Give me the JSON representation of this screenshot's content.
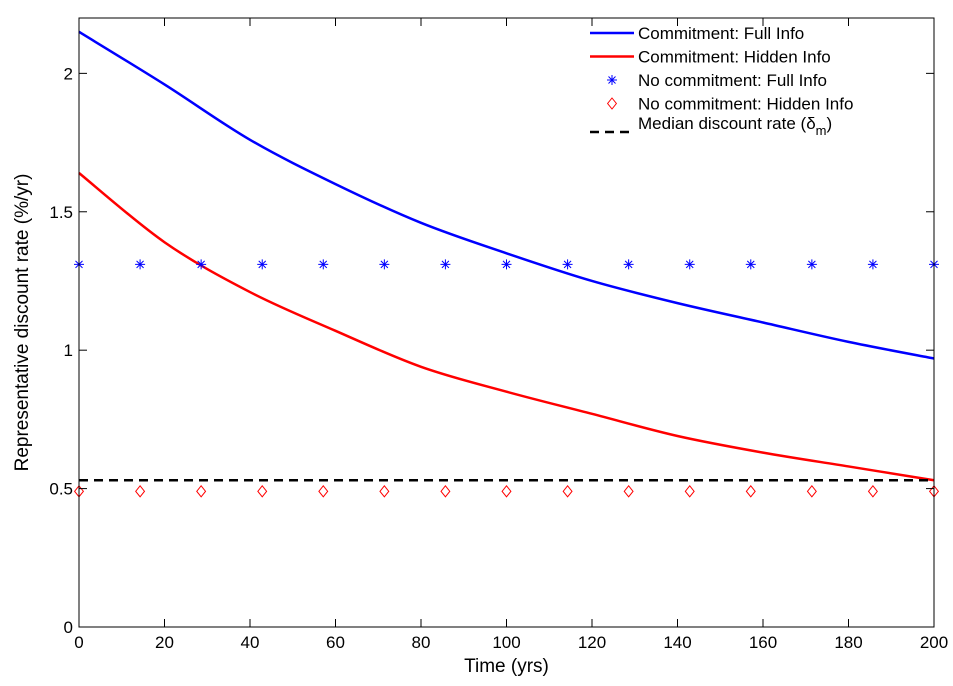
{
  "chart_data": {
    "type": "line",
    "title": "",
    "xlabel": "Time (yrs)",
    "ylabel": "Representative discount rate (%/yr)",
    "xlim": [
      0,
      200
    ],
    "ylim": [
      0,
      2.2
    ],
    "xticks": [
      0,
      20,
      40,
      60,
      80,
      100,
      120,
      140,
      160,
      180,
      200
    ],
    "xtick_labels": [
      "0",
      "20",
      "40",
      "60",
      "80",
      "100",
      "120",
      "140",
      "160",
      "180",
      "200"
    ],
    "yticks": [
      0,
      0.5,
      1,
      1.5,
      2
    ],
    "ytick_labels": [
      "0",
      "0.5",
      "1",
      "1.5",
      "2"
    ],
    "grid": false,
    "legend_position": "top-right",
    "series": [
      {
        "name": "Commitment: Full Info",
        "style": "line",
        "color": "#0000ff",
        "x": [
          0,
          20,
          40,
          60,
          80,
          100,
          120,
          140,
          160,
          180,
          200
        ],
        "values": [
          2.15,
          1.96,
          1.76,
          1.6,
          1.46,
          1.35,
          1.25,
          1.17,
          1.1,
          1.03,
          0.97
        ]
      },
      {
        "name": "Commitment: Hidden Info",
        "style": "line",
        "color": "#ff0000",
        "x": [
          0,
          20,
          40,
          60,
          80,
          100,
          120,
          140,
          160,
          180,
          200
        ],
        "values": [
          1.64,
          1.39,
          1.21,
          1.07,
          0.94,
          0.85,
          0.77,
          0.69,
          0.63,
          0.58,
          0.53
        ]
      },
      {
        "name": "No commitment: Full Info",
        "style": "marker-star",
        "color": "#0000ff",
        "x": [
          0,
          14.29,
          28.57,
          42.86,
          57.14,
          71.43,
          85.71,
          100,
          114.29,
          128.57,
          142.86,
          157.14,
          171.43,
          185.71,
          200
        ],
        "values": [
          1.31,
          1.31,
          1.31,
          1.31,
          1.31,
          1.31,
          1.31,
          1.31,
          1.31,
          1.31,
          1.31,
          1.31,
          1.31,
          1.31,
          1.31
        ]
      },
      {
        "name": "No commitment: Hidden Info",
        "style": "marker-diamond",
        "color": "#ff0000",
        "x": [
          0,
          14.29,
          28.57,
          42.86,
          57.14,
          71.43,
          85.71,
          100,
          114.29,
          128.57,
          142.86,
          157.14,
          171.43,
          185.71,
          200
        ],
        "values": [
          0.49,
          0.49,
          0.49,
          0.49,
          0.49,
          0.49,
          0.49,
          0.49,
          0.49,
          0.49,
          0.49,
          0.49,
          0.49,
          0.49,
          0.49
        ]
      },
      {
        "name": "Median discount rate (δm)",
        "legend_main": "Median discount rate (δ",
        "legend_sub": "m",
        "legend_close": ")",
        "style": "dashed",
        "color": "#000000",
        "x": [
          0,
          200
        ],
        "values": [
          0.53,
          0.53
        ]
      }
    ]
  }
}
